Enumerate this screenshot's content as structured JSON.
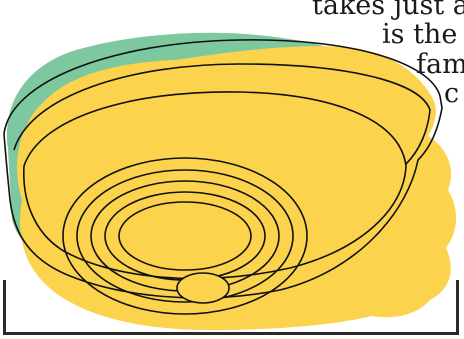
{
  "caption_lines": [
    "takes just a f",
    "is the b",
    "fam",
    "c"
  ],
  "colors": {
    "background": "#ffffff",
    "blob_green": "#7ec8a0",
    "blob_yellow": "#fcd34d",
    "outline": "#111111",
    "frame": "#2a2a2a"
  },
  "icons": [
    "smoke-detector-icon"
  ]
}
